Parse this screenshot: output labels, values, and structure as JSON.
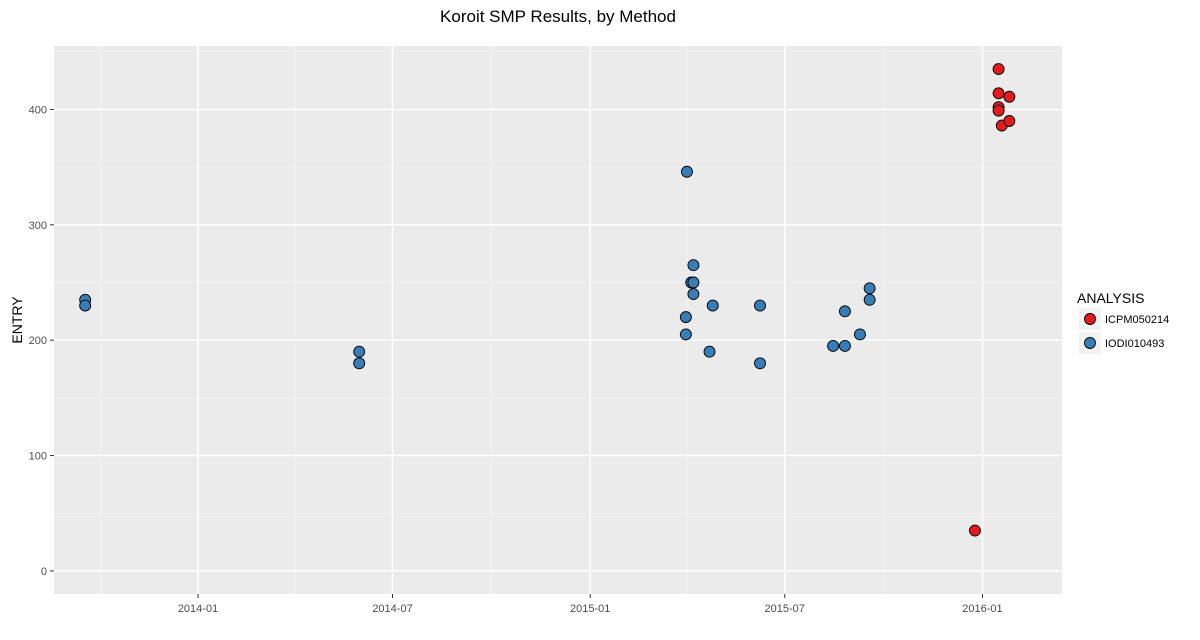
{
  "chart_data": {
    "type": "scatter",
    "title": "Koroit SMP Results, by Method",
    "xlabel": "",
    "ylabel": "ENTRY",
    "x_type": "date",
    "xlim": [
      "2013-08-20",
      "2016-03-15"
    ],
    "ylim": [
      -20,
      455
    ],
    "x_ticks": [
      "2014-01-01",
      "2014-07-01",
      "2015-01-01",
      "2015-07-01",
      "2016-01-01"
    ],
    "x_tick_labels": [
      "2014-01",
      "2014-07",
      "2015-01",
      "2015-07",
      "2016-01"
    ],
    "y_ticks": [
      0,
      100,
      200,
      300,
      400
    ],
    "y_tick_labels": [
      "0",
      "100",
      "200",
      "300",
      "400"
    ],
    "grid": true,
    "legend": {
      "title": "ANALYSIS",
      "position": "right"
    },
    "series": [
      {
        "name": "ICPM050214",
        "color": "#e41a1c",
        "points": [
          {
            "x": "2016-01-16",
            "y": 435
          },
          {
            "x": "2016-01-16",
            "y": 414
          },
          {
            "x": "2016-01-16",
            "y": 402
          },
          {
            "x": "2016-01-16",
            "y": 399
          },
          {
            "x": "2016-01-19",
            "y": 386
          },
          {
            "x": "2016-01-26",
            "y": 411
          },
          {
            "x": "2016-01-26",
            "y": 390
          },
          {
            "x": "2015-12-25",
            "y": 35
          }
        ]
      },
      {
        "name": "IODI010493",
        "color": "#377eb8",
        "points": [
          {
            "x": "2013-09-18",
            "y": 235
          },
          {
            "x": "2013-09-18",
            "y": 230
          },
          {
            "x": "2014-05-31",
            "y": 190
          },
          {
            "x": "2014-05-31",
            "y": 180
          },
          {
            "x": "2015-04-01",
            "y": 346
          },
          {
            "x": "2015-03-31",
            "y": 220
          },
          {
            "x": "2015-03-31",
            "y": 205
          },
          {
            "x": "2015-04-05",
            "y": 250
          },
          {
            "x": "2015-04-07",
            "y": 265
          },
          {
            "x": "2015-04-07",
            "y": 250
          },
          {
            "x": "2015-04-07",
            "y": 240
          },
          {
            "x": "2015-04-22",
            "y": 190
          },
          {
            "x": "2015-04-25",
            "y": 230
          },
          {
            "x": "2015-06-08",
            "y": 230
          },
          {
            "x": "2015-06-08",
            "y": 180
          },
          {
            "x": "2015-08-15",
            "y": 195
          },
          {
            "x": "2015-08-26",
            "y": 225
          },
          {
            "x": "2015-08-26",
            "y": 195
          },
          {
            "x": "2015-09-09",
            "y": 205
          },
          {
            "x": "2015-09-18",
            "y": 245
          },
          {
            "x": "2015-09-18",
            "y": 235
          }
        ]
      }
    ]
  }
}
